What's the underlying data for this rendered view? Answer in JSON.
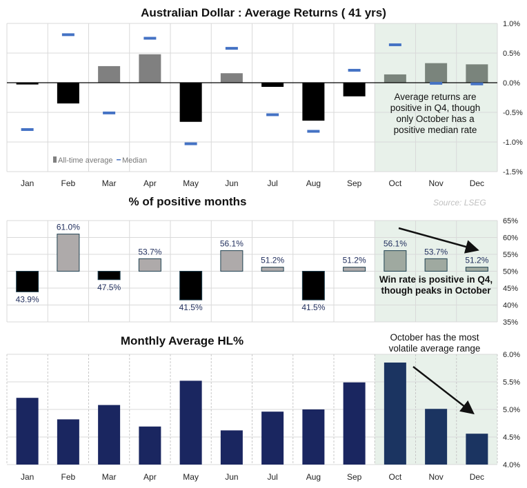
{
  "chart_data": [
    {
      "type": "bar",
      "title": "Australian Dollar : Average Returns ( 41 yrs)",
      "categories": [
        "Jan",
        "Feb",
        "Mar",
        "Apr",
        "May",
        "Jun",
        "Jul",
        "Aug",
        "Sep",
        "Oct",
        "Nov",
        "Dec"
      ],
      "series": [
        {
          "name": "All-time average",
          "type": "bar",
          "values": [
            -0.03,
            -0.35,
            0.28,
            0.48,
            -0.66,
            0.16,
            -0.07,
            -0.64,
            -0.23,
            0.14,
            0.33,
            0.31
          ]
        },
        {
          "name": "Median",
          "type": "marker",
          "values": [
            -0.79,
            0.81,
            -0.51,
            0.75,
            -1.03,
            0.58,
            -0.54,
            -0.82,
            0.21,
            0.64,
            -0.01,
            -0.02
          ]
        }
      ],
      "ylim": [
        -1.5,
        1.0
      ],
      "yticks": [
        "1.0%",
        "0.5%",
        "0.0%",
        "-0.5%",
        "-1.0%",
        "-1.5%"
      ],
      "y_axis_position": "right",
      "grid": true,
      "legend": "bottom-left",
      "highlight_categories": [
        "Oct",
        "Nov",
        "Dec"
      ],
      "annotation": [
        "Average returns are",
        "positive in Q4, though",
        "only October has a",
        "positive median rate"
      ],
      "colors": {
        "positive": "#808080",
        "negative": "#000000",
        "median": "#4472c4",
        "negative_tick": "#e00000",
        "highlight": "#e8f1ea"
      }
    },
    {
      "type": "bar",
      "title": "% of positive months",
      "source": "Source: LSEG",
      "categories": [
        "Jan",
        "Feb",
        "Mar",
        "Apr",
        "May",
        "Jun",
        "Jul",
        "Aug",
        "Sep",
        "Oct",
        "Nov",
        "Dec"
      ],
      "baseline": 50,
      "values": [
        43.9,
        61.0,
        47.5,
        53.7,
        41.5,
        56.1,
        51.2,
        41.5,
        51.2,
        56.1,
        53.7,
        51.2
      ],
      "data_labels": [
        "43.9%",
        "61.0%",
        "47.5%",
        "53.7%",
        "41.5%",
        "56.1%",
        "51.2%",
        "41.5%",
        "51.2%",
        "56.1%",
        "53.7%",
        "51.2%"
      ],
      "ylim": [
        35,
        65
      ],
      "yticks": [
        "65%",
        "60%",
        "55%",
        "50%",
        "45%",
        "40%",
        "35%"
      ],
      "y_axis_position": "right",
      "grid": true,
      "highlight_categories": [
        "Oct",
        "Nov",
        "Dec"
      ],
      "annotation": [
        "Win rate is positive in Q4,",
        "though peaks in October"
      ],
      "colors": {
        "positive": "#aeaaaa",
        "positive_q4": "#9fa9a0",
        "negative": "#000000",
        "border": "#1f4050",
        "label": "#1f2d5c"
      }
    },
    {
      "type": "bar",
      "title": "Monthly Average HL%",
      "categories": [
        "Jan",
        "Feb",
        "Mar",
        "Apr",
        "May",
        "Jun",
        "Jul",
        "Aug",
        "Sep",
        "Oct",
        "Nov",
        "Dec"
      ],
      "values": [
        5.21,
        4.82,
        5.08,
        4.69,
        5.52,
        4.62,
        4.96,
        5.0,
        5.49,
        5.85,
        5.01,
        4.56
      ],
      "ylim": [
        4.0,
        6.0
      ],
      "yticks": [
        "6.0%",
        "5.5%",
        "5.0%",
        "4.5%",
        "4.0%"
      ],
      "y_axis_position": "right",
      "grid": true,
      "highlight_categories": [
        "Oct",
        "Nov",
        "Dec"
      ],
      "annotation": [
        "October has the most",
        "volatile average range"
      ],
      "colors": {
        "bar": "#1a2660",
        "bar_q4": "#1b3461"
      }
    }
  ]
}
